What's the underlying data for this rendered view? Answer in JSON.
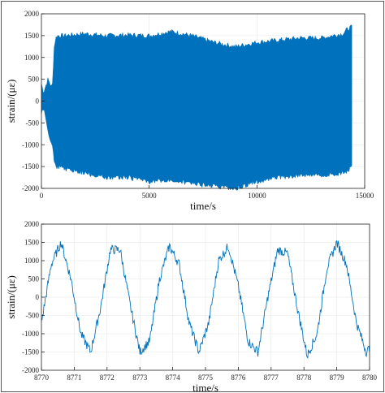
{
  "colors": {
    "series": "#0072BD",
    "axis": "#222222",
    "grid": "#e6e6e6"
  },
  "chart_data": [
    {
      "type": "area",
      "title": "",
      "xlabel": "time/s",
      "ylabel": "strain/(με)",
      "xlim": [
        0,
        15000
      ],
      "ylim": [
        -2000,
        2000
      ],
      "xticks": [
        0,
        5000,
        10000,
        15000
      ],
      "yticks": [
        -2000,
        -1500,
        -1000,
        -500,
        0,
        500,
        1000,
        1500,
        2000
      ],
      "grid": true,
      "series": [
        {
          "x": [
            0,
            100,
            300,
            500,
            600,
            700,
            1000,
            2000,
            3000,
            4000,
            5000,
            6000,
            7000,
            8000,
            9000,
            10000,
            11000,
            12000,
            13000,
            14000,
            14200,
            14400
          ],
          "upper": [
            400,
            200,
            500,
            300,
            1300,
            1500,
            1500,
            1550,
            1500,
            1520,
            1500,
            1600,
            1500,
            1350,
            1250,
            1350,
            1400,
            1450,
            1450,
            1550,
            1650,
            1700
          ],
          "lower": [
            -300,
            -150,
            -700,
            -1000,
            -1400,
            -1500,
            -1550,
            -1650,
            -1750,
            -1750,
            -1850,
            -1800,
            -1900,
            -1950,
            -2000,
            -1850,
            -1750,
            -1700,
            -1700,
            -1650,
            -1600,
            -1500
          ]
        }
      ]
    },
    {
      "type": "line",
      "title": "",
      "xlabel": "time/s",
      "ylabel": "strain/(με)",
      "xlim": [
        8770,
        8780
      ],
      "ylim": [
        -2000,
        2000
      ],
      "xticks": [
        8770,
        8771,
        8772,
        8773,
        8774,
        8775,
        8776,
        8777,
        8778,
        8779,
        8780
      ],
      "yticks": [
        -2000,
        -1500,
        -1000,
        -500,
        0,
        500,
        1000,
        1500,
        2000
      ],
      "grid": true,
      "series": [
        {
          "x": [
            8770.0,
            8770.3,
            8770.6,
            8770.9,
            8771.2,
            8771.5,
            8771.8,
            8772.1,
            8772.4,
            8772.7,
            8773.0,
            8773.3,
            8773.6,
            8773.9,
            8774.2,
            8774.5,
            8774.8,
            8775.1,
            8775.4,
            8775.7,
            8776.0,
            8776.3,
            8776.6,
            8776.9,
            8777.2,
            8777.5,
            8777.8,
            8778.1,
            8778.4,
            8778.7,
            8779.0,
            8779.3,
            8779.6,
            8779.9,
            8780.0
          ],
          "y": [
            -700,
            900,
            1500,
            500,
            -1000,
            -1500,
            -300,
            1300,
            1300,
            -200,
            -1500,
            -1200,
            500,
            1400,
            900,
            -700,
            -1500,
            -700,
            1000,
            1400,
            300,
            -1200,
            -1500,
            0,
            1300,
            1200,
            -300,
            -1600,
            -1000,
            800,
            1500,
            900,
            -700,
            -1500,
            -1400
          ]
        }
      ]
    }
  ]
}
